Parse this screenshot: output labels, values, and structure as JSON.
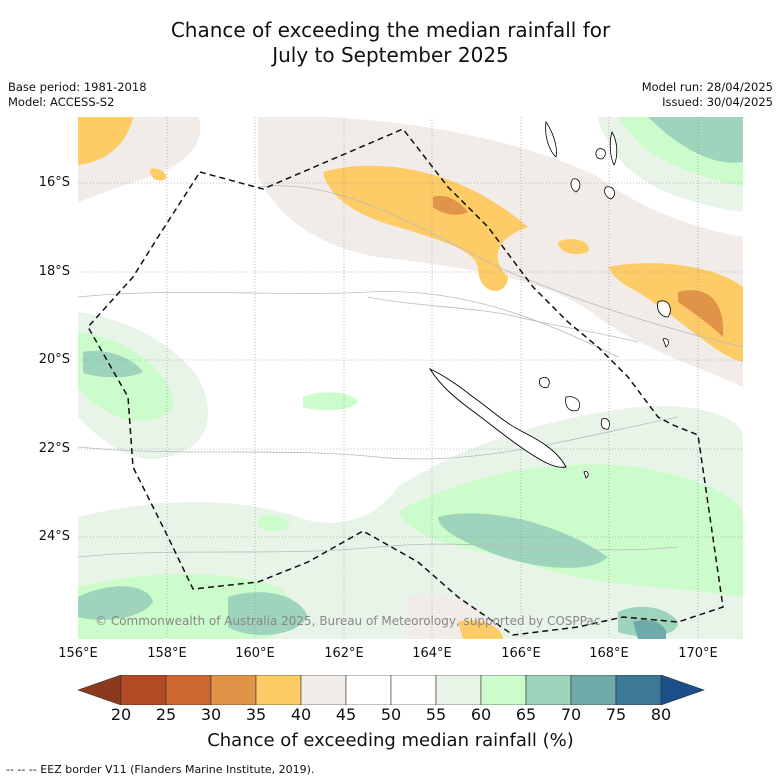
{
  "title": {
    "line1": "Chance of exceeding the median rainfall for",
    "line2": "July to September 2025"
  },
  "meta": {
    "base_period": "Base period: 1981-2018",
    "model": "Model: ACCESS-S2",
    "model_run": "Model run: 28/04/2025",
    "issued": "Issued: 30/04/2025"
  },
  "axes": {
    "lat_labels": [
      "16°S",
      "18°S",
      "20°S",
      "22°S",
      "24°S"
    ],
    "lon_labels": [
      "156°E",
      "158°E",
      "160°E",
      "162°E",
      "164°E",
      "166°E",
      "168°E",
      "170°E"
    ]
  },
  "copyright": "© Commonwealth of Australia 2025, Bureau of Meteorology, supported by COSPPac",
  "colorbar": {
    "ticks": [
      "20",
      "25",
      "30",
      "35",
      "40",
      "45",
      "50",
      "55",
      "60",
      "65",
      "70",
      "75",
      "80"
    ],
    "colors": [
      "#8b3a1e",
      "#b34a24",
      "#cd6630",
      "#e09448",
      "#fecc66",
      "#f1ece8",
      "#ffffff",
      "#ffffff",
      "#e9f4e9",
      "#ccfccc",
      "#9ed3bc",
      "#6fa9a9",
      "#3e7898",
      "#1a4f8a"
    ],
    "title": "Chance of exceeding median rainfall (%)"
  },
  "footnote": "--  --  -- EEZ border V11 (Flanders Marine Institute, 2019)."
}
